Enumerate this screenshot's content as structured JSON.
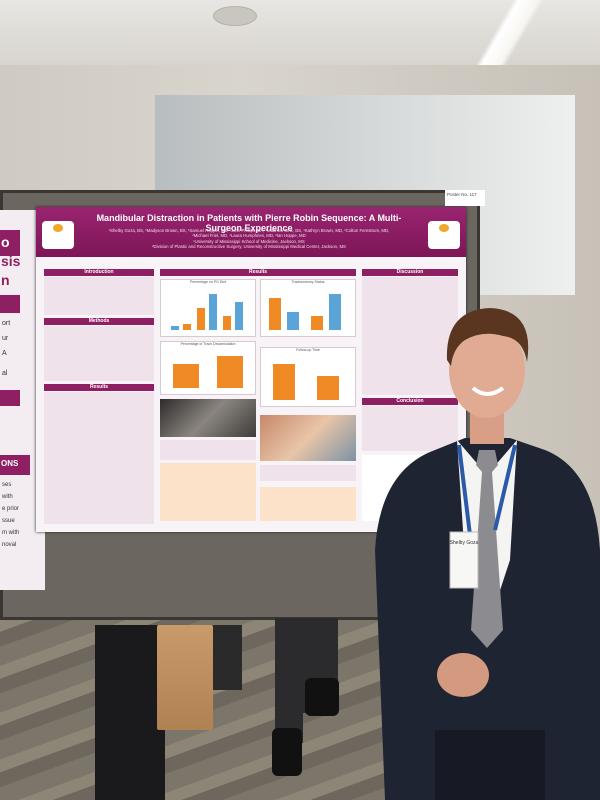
{
  "poster": {
    "title": "Mandibular Distraction in Patients with Pierre Robin Sequence: A Multi-Surgeon Experience",
    "authors_line1": "¹Shelby Goza, BS, ¹Madyson Brown, BS, ¹Samuel Hopper, BS, ¹John Phillips, BA, ¹Matthew Sink, BS, ¹Kathryn Brown, MD, ²Colton Fernstrum, MD,",
    "authors_line2": "²Michael Friel, MD, ²Laura Humphries, MD, ²Ian Hoppe, MD",
    "affil1": "¹University of Mississippi School of Medicine, Jackson, MS",
    "affil2": "²Division of Plastic and Reconstructive Surgery, University of Mississippi Medical Center, Jackson, MS",
    "logo_text": "Children's of Mississippi",
    "sections": {
      "introduction": "Introduction",
      "methods": "Methods",
      "results_left": "Results",
      "results": "Results",
      "discussion": "Discussion",
      "conclusion": "Conclusion"
    },
    "chart_titles": [
      "Percentage on PO Diet",
      "Tracheostomy Status",
      "Percentage of Trach Decannulation",
      "Follow-up Time"
    ]
  },
  "left_poster_text": [
    "o",
    "sis",
    "n",
    "ort",
    "ur",
    "A",
    "al",
    "ONS",
    "ses",
    "with",
    "e prior",
    "ssue",
    "m with",
    "noval"
  ],
  "sign_text": "Poster No. 117",
  "badge_name": "Shelby Goza",
  "colors": {
    "poster_header": "#8e1f62",
    "bar_orange": "#f08a24",
    "bar_blue": "#5aa4d8"
  }
}
